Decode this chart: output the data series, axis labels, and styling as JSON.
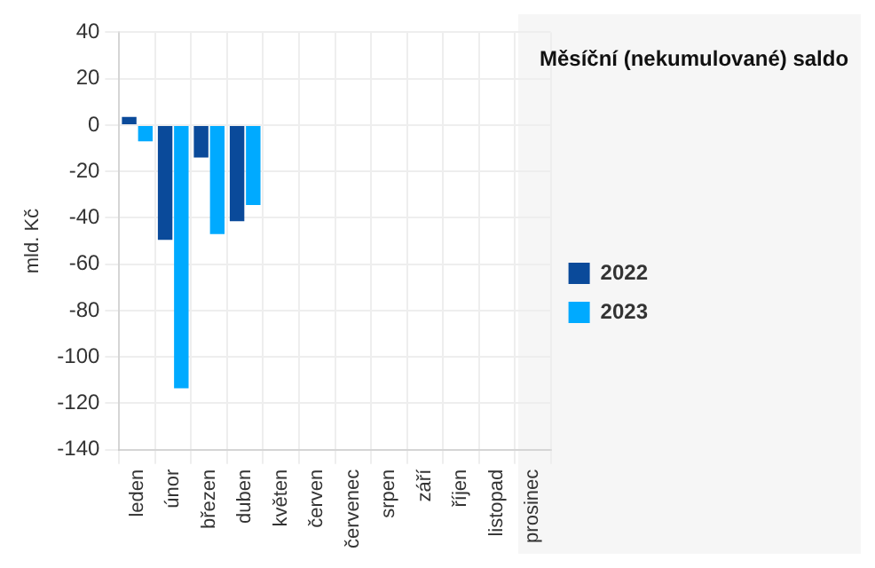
{
  "chart_data": {
    "type": "bar",
    "title": "Měsíční (nekumulované) saldo",
    "ylabel": "mld. Kč",
    "categories": [
      "leden",
      "únor",
      "březen",
      "duben",
      "květen",
      "červen",
      "červenec",
      "srpen",
      "září",
      "říjen",
      "listopad",
      "prosinec"
    ],
    "series": [
      {
        "name": "2022",
        "color": "#0a4a9a",
        "values": [
          3.5,
          -49.5,
          -14,
          -41.5,
          null,
          null,
          null,
          null,
          null,
          null,
          null,
          null
        ]
      },
      {
        "name": "2023",
        "color": "#00aaff",
        "values": [
          -7,
          -113.5,
          -47,
          -34.5,
          null,
          null,
          null,
          null,
          null,
          null,
          null,
          null
        ]
      }
    ],
    "ylim": [
      -140,
      40
    ],
    "yticks": [
      -140,
      -120,
      -100,
      -80,
      -60,
      -40,
      -20,
      0,
      20,
      40
    ],
    "grid": true,
    "legend": "right"
  }
}
